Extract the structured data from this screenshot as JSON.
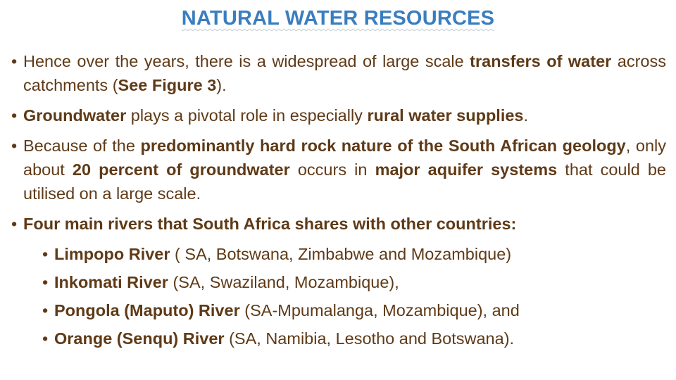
{
  "slide": {
    "title": "NATURAL WATER RESOURCES",
    "colors": {
      "title": "#3A7EBF",
      "body": "#5F3A17",
      "background": "#FFFFFF"
    },
    "bullets": [
      {
        "level": 1,
        "justify": true,
        "segments": [
          {
            "text": "Hence over the years, there is a widespread of large scale ",
            "bold": false
          },
          {
            "text": "transfers of water",
            "bold": true
          },
          {
            "text": " across catchments (",
            "bold": false
          },
          {
            "text": "See Figure 3",
            "bold": true
          },
          {
            "text": ").",
            "bold": false
          }
        ]
      },
      {
        "level": 1,
        "justify": true,
        "segments": [
          {
            "text": "Groundwater",
            "bold": true
          },
          {
            "text": " plays a pivotal role in especially ",
            "bold": false
          },
          {
            "text": "rural water supplies",
            "bold": true
          },
          {
            "text": ".",
            "bold": false
          }
        ]
      },
      {
        "level": 1,
        "justify": true,
        "segments": [
          {
            "text": "Because of the ",
            "bold": false
          },
          {
            "text": "predominantly hard rock nature of the South African geology",
            "bold": true
          },
          {
            "text": ", only about ",
            "bold": false
          },
          {
            "text": "20 percent of groundwater",
            "bold": true
          },
          {
            "text": " occurs in ",
            "bold": false
          },
          {
            "text": "major aquifer systems",
            "bold": true
          },
          {
            "text": " that could be utilised on a large scale.",
            "bold": false
          }
        ]
      },
      {
        "level": 1,
        "justify": true,
        "segments": [
          {
            "text": "Four main rivers that South Africa shares with other countries:",
            "bold": true
          }
        ]
      },
      {
        "level": 2,
        "justify": false,
        "segments": [
          {
            "text": "Limpopo River",
            "bold": true
          },
          {
            "text": " ( SA, Botswana, Zimbabwe and Mozambique)",
            "bold": false
          }
        ]
      },
      {
        "level": 2,
        "justify": false,
        "segments": [
          {
            "text": "Inkomati River",
            "bold": true
          },
          {
            "text": " (SA, Swaziland, Mozambique),",
            "bold": false
          }
        ]
      },
      {
        "level": 2,
        "justify": false,
        "segments": [
          {
            "text": "Pongola (Maputo) River",
            "bold": true
          },
          {
            "text": " (SA-Mpumalanga, Mozambique), and",
            "bold": false
          }
        ]
      },
      {
        "level": 2,
        "justify": false,
        "segments": [
          {
            "text": "Orange (Senqu) River",
            "bold": true
          },
          {
            "text": " (SA, Namibia, Lesotho and Botswana).",
            "bold": false
          }
        ]
      }
    ],
    "bullet_marker": "•"
  }
}
